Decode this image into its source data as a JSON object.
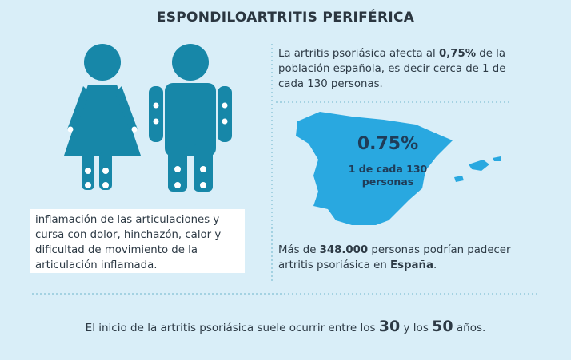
{
  "title": "ESPONDILOARTRITIS PERIFÉRICA",
  "symptoms_text": "inflamación de las articulaciones y cursa con dolor, hinchazón, calor y dificultad de movimiento de la articulación inflamada.",
  "prevalence": {
    "before": "La artritis psoriásica afecta al ",
    "highlight": "0,75%",
    "after": " de la población española, es decir cerca de 1 de cada 130 personas."
  },
  "map": {
    "percent": "0.75%",
    "caption": "1 de cada 130 personas"
  },
  "affected": {
    "before": "Más de ",
    "number": "348.000",
    "middle": " personas podrían padecer artritis psoriásica en ",
    "country": "España",
    "after": "."
  },
  "onset": {
    "before": "El inicio de la artritis psoriásica suele ocurrir entre los ",
    "age_from": "30",
    "middle": " y los ",
    "age_to": "50",
    "after": " años."
  }
}
